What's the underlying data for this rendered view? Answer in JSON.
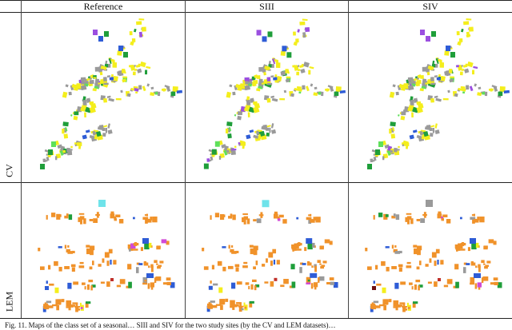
{
  "figure": {
    "columns": [
      "Reference",
      "SIII",
      "SIV"
    ],
    "rows": [
      "CV",
      "LEM"
    ],
    "caption": "Fig. 11. Maps of the class set of a seasonal… SIII and SIV for the two study sites (by the CV and LEM datasets)…"
  },
  "palette": {
    "yellow": "#f4ee1c",
    "gray": "#9a9a9a",
    "orange": "#f0922a",
    "green": "#1f9e3a",
    "lightgreen": "#5ee05a",
    "blue": "#2e5cd6",
    "purple": "#9b4fe0",
    "cyan": "#6fe3ea",
    "red": "#c0302a",
    "magenta": "#d04ad6",
    "darkred": "#6e1010"
  }
}
